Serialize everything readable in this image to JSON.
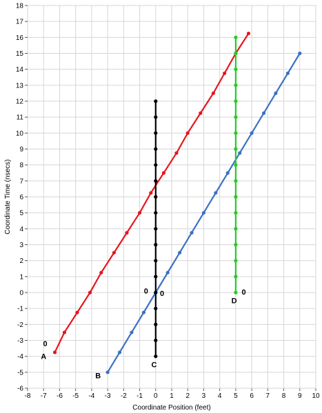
{
  "chart_data": {
    "type": "line",
    "title": "",
    "xlabel": "Coordinate Position (feet)",
    "ylabel": "Coordinate Time (nsecs)",
    "xlim": [
      -8,
      10
    ],
    "ylim": [
      -6,
      18
    ],
    "grid": true,
    "x_ticks": [
      -8,
      -7,
      -6,
      -5,
      -4,
      -3,
      -2,
      -1,
      0,
      1,
      2,
      3,
      4,
      5,
      6,
      7,
      8,
      9,
      10
    ],
    "y_ticks": [
      -6,
      -5,
      -4,
      -3,
      -2,
      -1,
      0,
      1,
      2,
      3,
      4,
      5,
      6,
      7,
      8,
      9,
      10,
      11,
      12,
      13,
      14,
      15,
      16,
      17,
      18
    ],
    "series": [
      {
        "label": "A",
        "color": "#e8141e",
        "x": [
          -6.3,
          -5.7,
          -4.9,
          -4.1,
          -3.4,
          -2.6,
          -1.8,
          -1.0,
          -0.3,
          0.5,
          1.3,
          2.0,
          2.8,
          3.6,
          4.3,
          5.0,
          5.8
        ],
        "y": [
          -3.75,
          -2.5,
          -1.25,
          0,
          1.25,
          2.5,
          3.75,
          5.0,
          6.25,
          7.5,
          8.75,
          10.0,
          11.25,
          12.5,
          13.75,
          15.0,
          16.25
        ]
      },
      {
        "label": "B",
        "color": "#3b70c4",
        "x": [
          -3,
          -2.25,
          -1.5,
          -0.75,
          0,
          0.75,
          1.5,
          2.25,
          3.0,
          3.75,
          4.5,
          5.25,
          6.0,
          6.75,
          7.5,
          8.25,
          9.0
        ],
        "y": [
          -5,
          -3.75,
          -2.5,
          -1.25,
          0,
          1.25,
          2.5,
          3.75,
          5.0,
          6.25,
          7.5,
          8.75,
          10.0,
          11.25,
          12.5,
          13.75,
          15.0
        ]
      },
      {
        "label": "C",
        "color": "#000000",
        "x": [
          0,
          0,
          0,
          0,
          0,
          0,
          0,
          0,
          0,
          0,
          0,
          0,
          0,
          0,
          0,
          0,
          0
        ],
        "y": [
          -4,
          -3,
          -2,
          -1,
          0,
          1,
          2,
          3,
          4,
          5,
          6,
          7,
          8,
          9,
          10,
          11,
          12
        ]
      },
      {
        "label": "D",
        "color": "#22cc22",
        "x": [
          5,
          5,
          5,
          5,
          5,
          5,
          5,
          5,
          5,
          5,
          5,
          5,
          5,
          5,
          5,
          5,
          5
        ],
        "y": [
          0,
          1,
          2,
          3,
          4,
          5,
          6,
          7,
          8,
          9,
          10,
          11,
          12,
          13,
          14,
          15,
          16
        ]
      }
    ],
    "annotations": [
      {
        "text": "0",
        "x": -6.9,
        "y": -3.2
      },
      {
        "text": "A",
        "x": -7.0,
        "y": -4.0
      },
      {
        "text": "B",
        "x": -3.6,
        "y": -5.2
      },
      {
        "text": "C",
        "x": -0.1,
        "y": -4.5
      },
      {
        "text": "0",
        "x": -0.6,
        "y": 0.1
      },
      {
        "text": "0",
        "x": 0.4,
        "y": -0.05
      },
      {
        "text": "D",
        "x": 4.9,
        "y": -0.5
      },
      {
        "text": "0",
        "x": 5.5,
        "y": 0.05
      }
    ]
  }
}
